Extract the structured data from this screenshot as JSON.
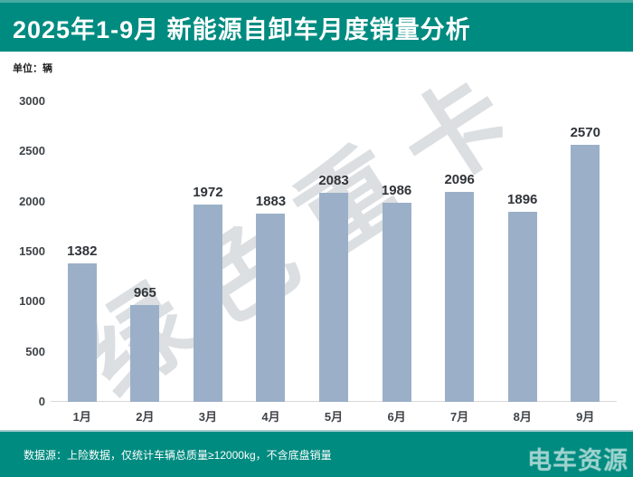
{
  "header": {
    "title": "2025年1-9月 新能源自卸车月度销量分析"
  },
  "unit_label": "单位：辆",
  "watermark": {
    "text": "绿色重卡"
  },
  "chart_data": {
    "type": "bar",
    "title": "2025年1-9月 新能源自卸车月度销量分析",
    "categories": [
      "1月",
      "2月",
      "3月",
      "4月",
      "5月",
      "6月",
      "7月",
      "8月",
      "9月"
    ],
    "values": [
      1382,
      965,
      1972,
      1883,
      2083,
      1986,
      2096,
      1896,
      2570
    ],
    "xlabel": "",
    "ylabel": "单位：辆",
    "ylim": [
      0,
      3000
    ],
    "yticks": [
      0,
      500,
      1000,
      1500,
      2000,
      2500,
      3000
    ],
    "grid": false,
    "legend": false,
    "bar_color": "#9BB0C8",
    "data_label_position": "above-bar"
  },
  "footer": {
    "source_note": "数据源：上险数据，仅统计车辆总质量≥12000kg，不含底盘销量",
    "logo_text": "电车资源"
  },
  "colors": {
    "accent_teal": "#008B80",
    "bar": "#9BB0C8",
    "watermark_gray": "#DCDFE2",
    "baseline_gray": "#D9D9D9",
    "text_dark": "#303338"
  }
}
